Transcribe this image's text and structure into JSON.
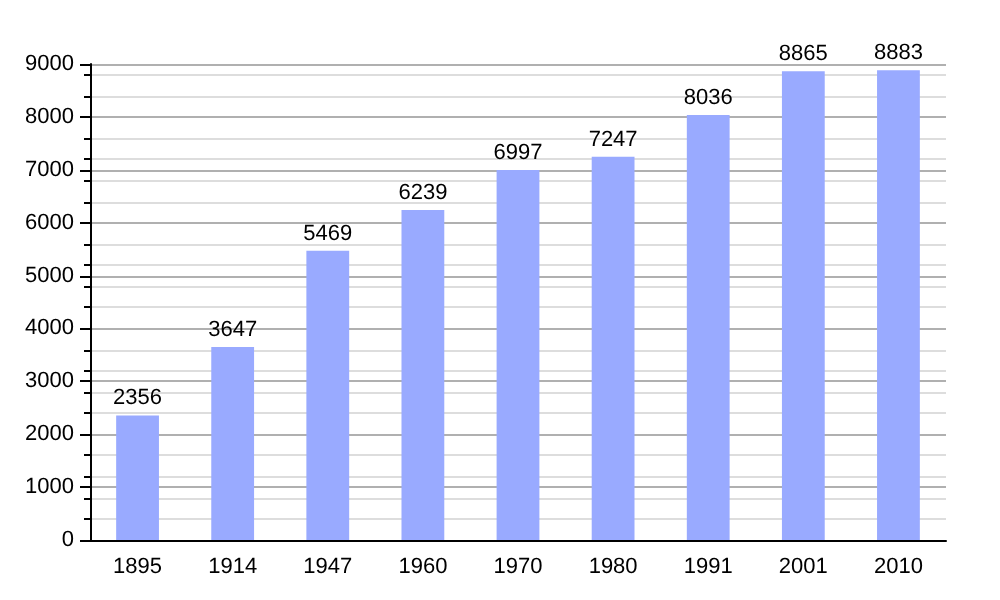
{
  "chart_data": {
    "type": "bar",
    "categories": [
      "1895",
      "1914",
      "1947",
      "1960",
      "1970",
      "1980",
      "1991",
      "2001",
      "2010"
    ],
    "values": [
      2356,
      3647,
      5469,
      6239,
      6997,
      7247,
      8036,
      8865,
      8883
    ],
    "color": "#99aaff",
    "ylim": [
      0,
      9000
    ],
    "yticks": [
      0,
      1000,
      2000,
      3000,
      4000,
      5000,
      6000,
      7000,
      8000,
      9000
    ],
    "grid": "y",
    "data_labels": true
  }
}
